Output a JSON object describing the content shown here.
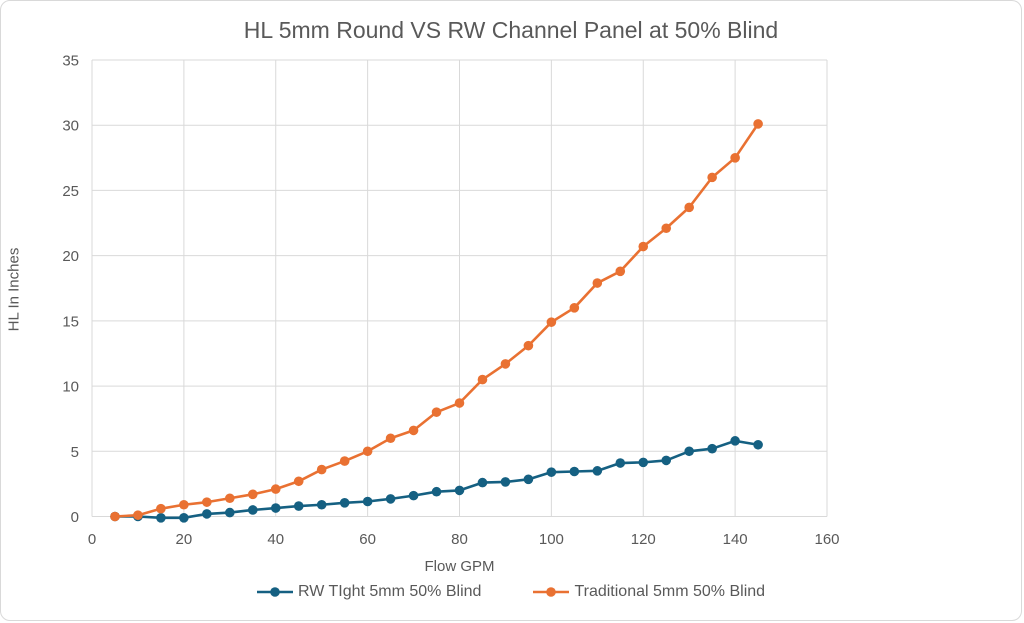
{
  "chart_data": {
    "type": "line",
    "title": "HL 5mm Round VS RW Channel Panel at 50% Blind",
    "xlabel": "Flow GPM",
    "ylabel": "HL In Inches",
    "xlim": [
      0,
      160
    ],
    "ylim": [
      0,
      35
    ],
    "xticks": [
      0,
      20,
      40,
      60,
      80,
      100,
      120,
      140,
      160
    ],
    "yticks": [
      0,
      5,
      10,
      15,
      20,
      25,
      30,
      35
    ],
    "grid": true,
    "legend_position": "bottom",
    "x": [
      5,
      10,
      15,
      20,
      25,
      30,
      35,
      40,
      45,
      50,
      55,
      60,
      65,
      70,
      75,
      80,
      85,
      90,
      95,
      100,
      105,
      110,
      115,
      120,
      125,
      130,
      135,
      140,
      145
    ],
    "series": [
      {
        "name": "RW TIght 5mm 50% Blind",
        "color": "#156082",
        "values": [
          0,
          0,
          -0.1,
          -0.1,
          0.2,
          0.3,
          0.5,
          0.65,
          0.8,
          0.9,
          1.05,
          1.15,
          1.35,
          1.6,
          1.9,
          2.0,
          2.6,
          2.65,
          2.85,
          3.4,
          3.45,
          3.5,
          4.1,
          4.15,
          4.3,
          5.0,
          5.2,
          5.8,
          5.5
        ]
      },
      {
        "name": "Traditional 5mm 50% Blind",
        "color": "#E97132",
        "values": [
          0,
          0.1,
          0.6,
          0.9,
          1.1,
          1.4,
          1.7,
          2.1,
          2.7,
          3.6,
          4.25,
          5.0,
          6.0,
          6.6,
          8.0,
          8.7,
          10.5,
          11.7,
          13.1,
          14.9,
          16.0,
          17.9,
          18.8,
          20.7,
          22.1,
          23.7,
          26.0,
          27.5,
          30.1
        ]
      }
    ]
  },
  "style": {
    "grid_color": "#d9d9d9",
    "text_color": "#595959",
    "background": "#ffffff"
  }
}
